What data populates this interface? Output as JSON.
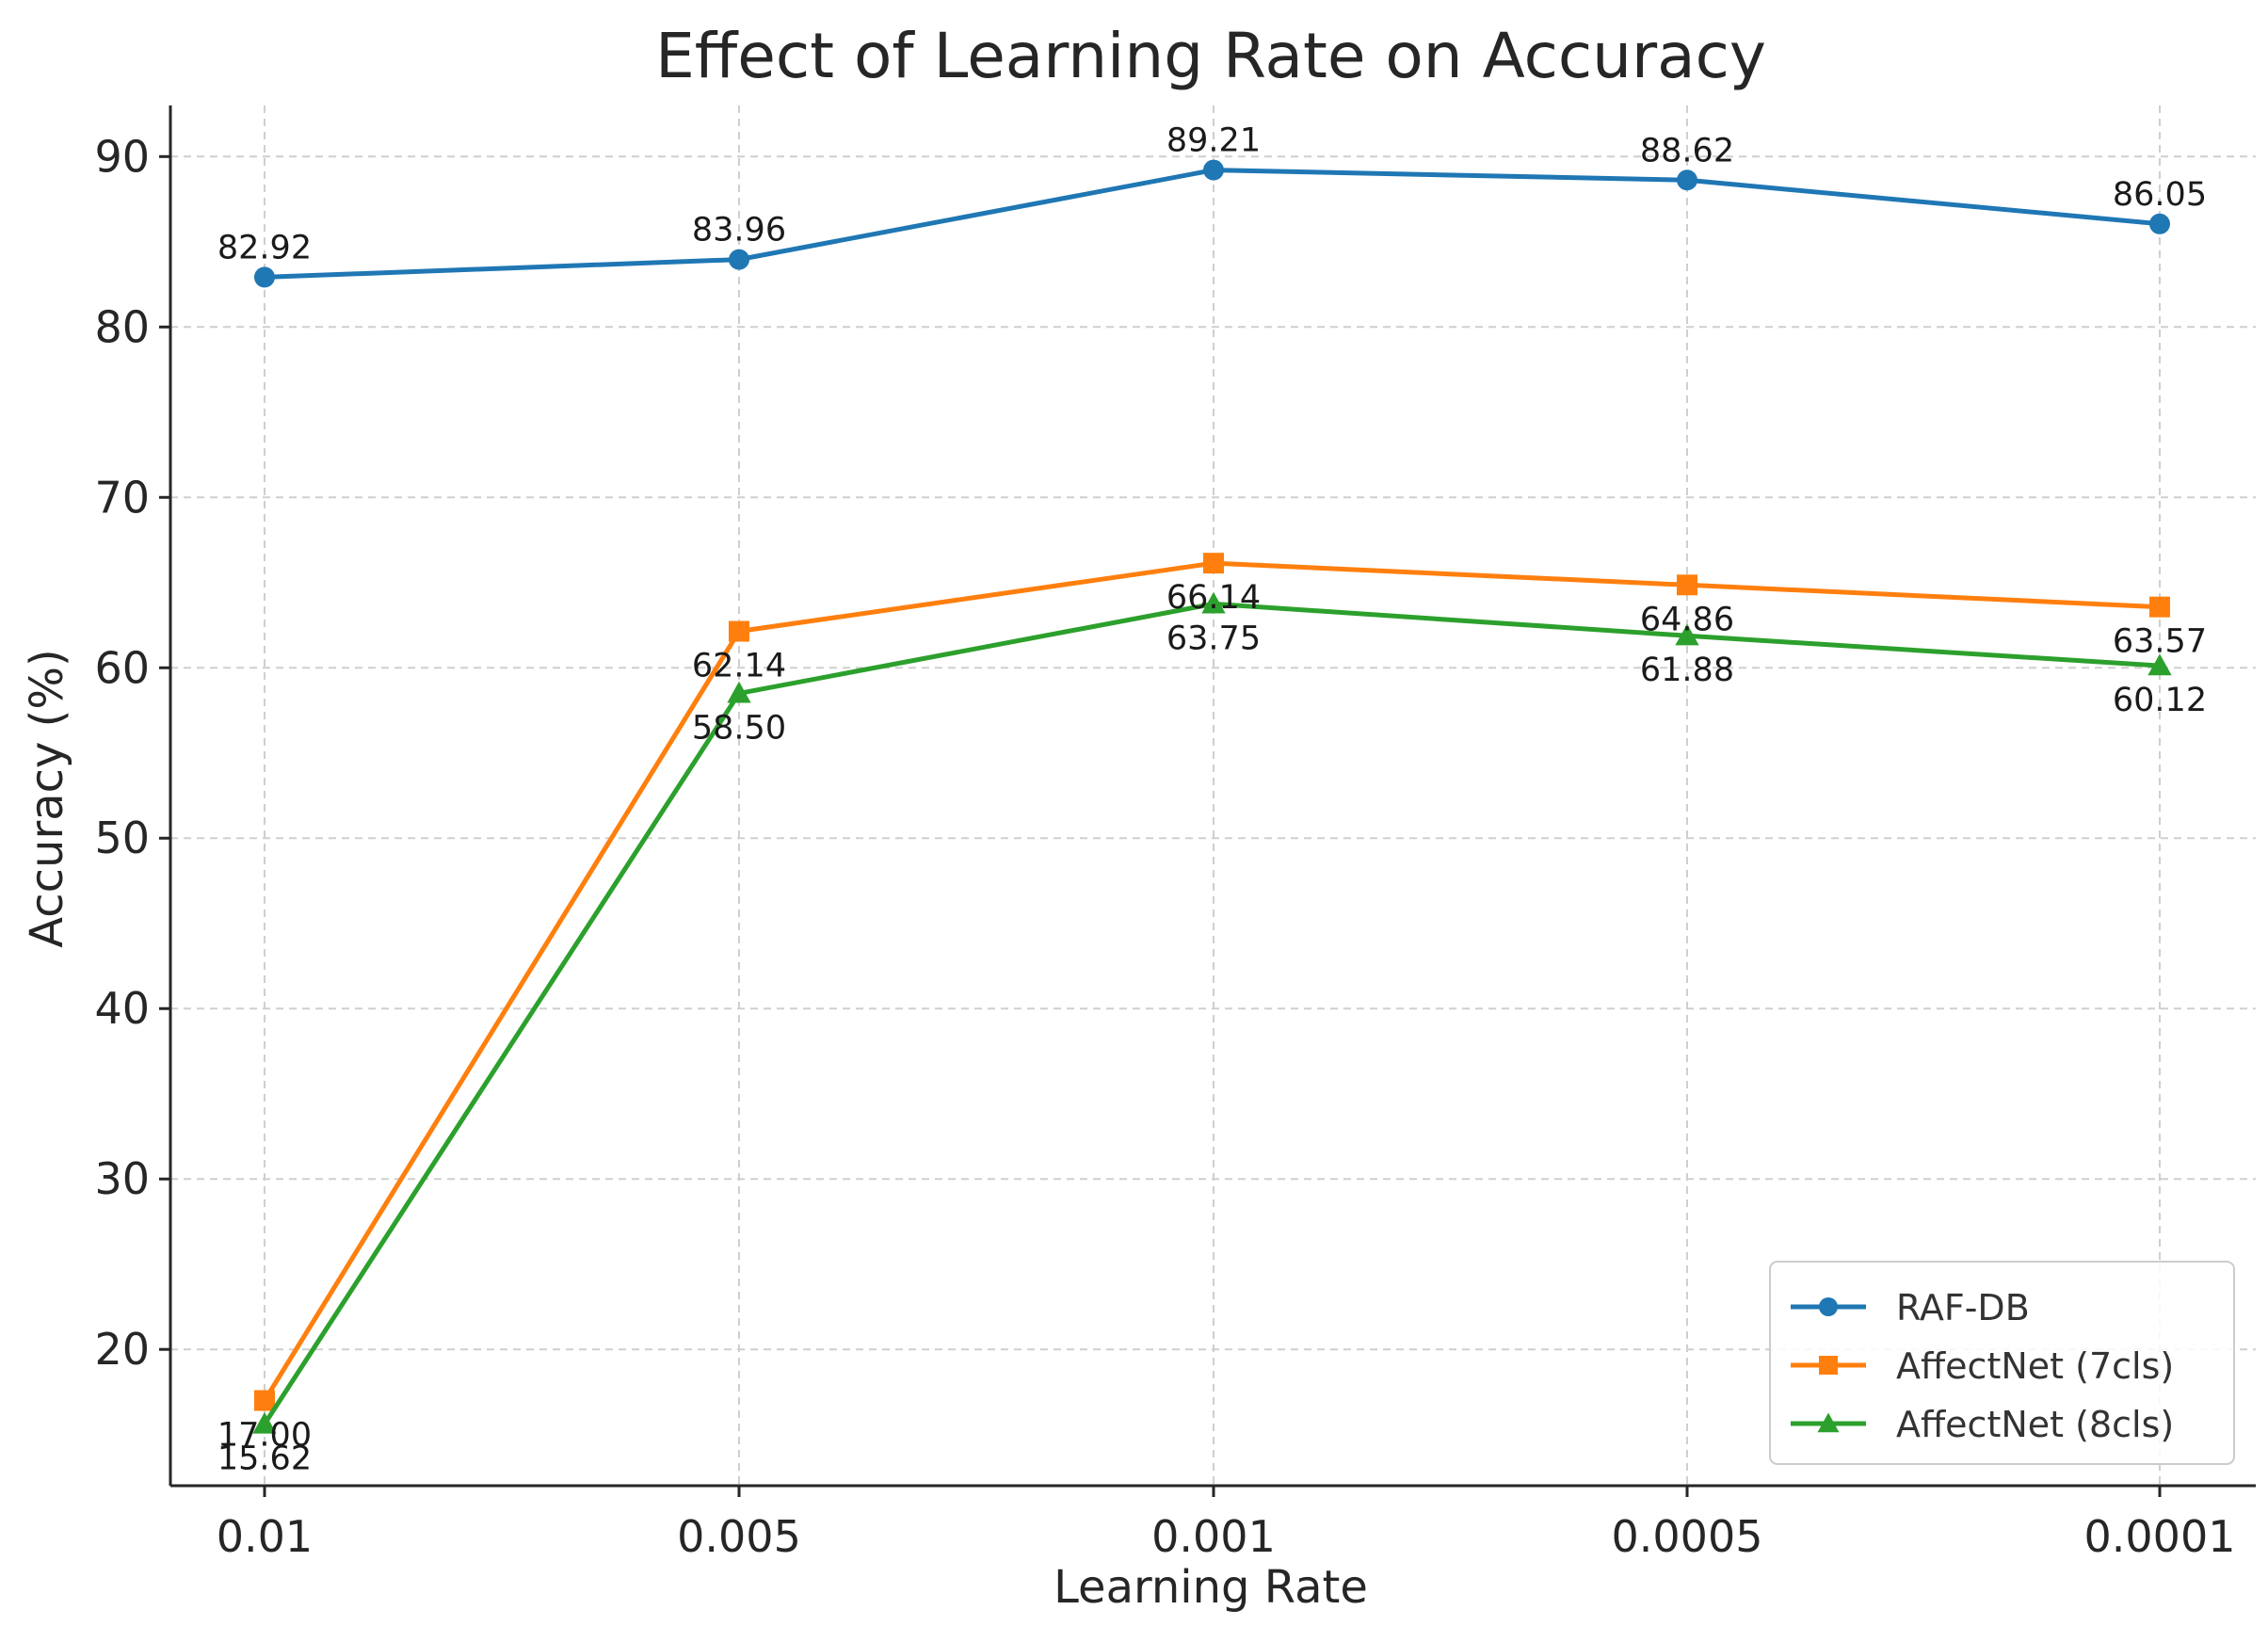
{
  "chart_data": {
    "type": "line",
    "title": "Effect of Learning Rate on Accuracy",
    "xlabel": "Learning Rate",
    "ylabel": "Accuracy (%)",
    "categories": [
      "0.01",
      "0.005",
      "0.001",
      "0.0005",
      "0.0001"
    ],
    "ylim": [
      12,
      93
    ],
    "yticks": [
      20,
      30,
      40,
      50,
      60,
      70,
      80,
      90
    ],
    "grid": true,
    "legend_position": "bottom-right",
    "series": [
      {
        "name": "RAF-DB",
        "color": "#1f77b4",
        "marker": "circle",
        "values": [
          82.92,
          83.96,
          89.21,
          88.62,
          86.05
        ],
        "labels": [
          "82.92",
          "83.96",
          "89.21",
          "88.62",
          "86.05"
        ],
        "label_position": "above"
      },
      {
        "name": "AffectNet (7cls)",
        "color": "#ff7f0e",
        "marker": "square",
        "values": [
          17.0,
          62.14,
          66.14,
          64.86,
          63.57
        ],
        "labels": [
          "17.00",
          "62.14",
          "66.14",
          "64.86",
          "63.57"
        ],
        "label_position": "below"
      },
      {
        "name": "AffectNet (8cls)",
        "color": "#2ca02c",
        "marker": "triangle",
        "values": [
          15.62,
          58.5,
          63.75,
          61.88,
          60.12
        ],
        "labels": [
          "15.62",
          "58.50",
          "63.75",
          "61.88",
          "60.12"
        ],
        "label_position": "below"
      }
    ]
  }
}
